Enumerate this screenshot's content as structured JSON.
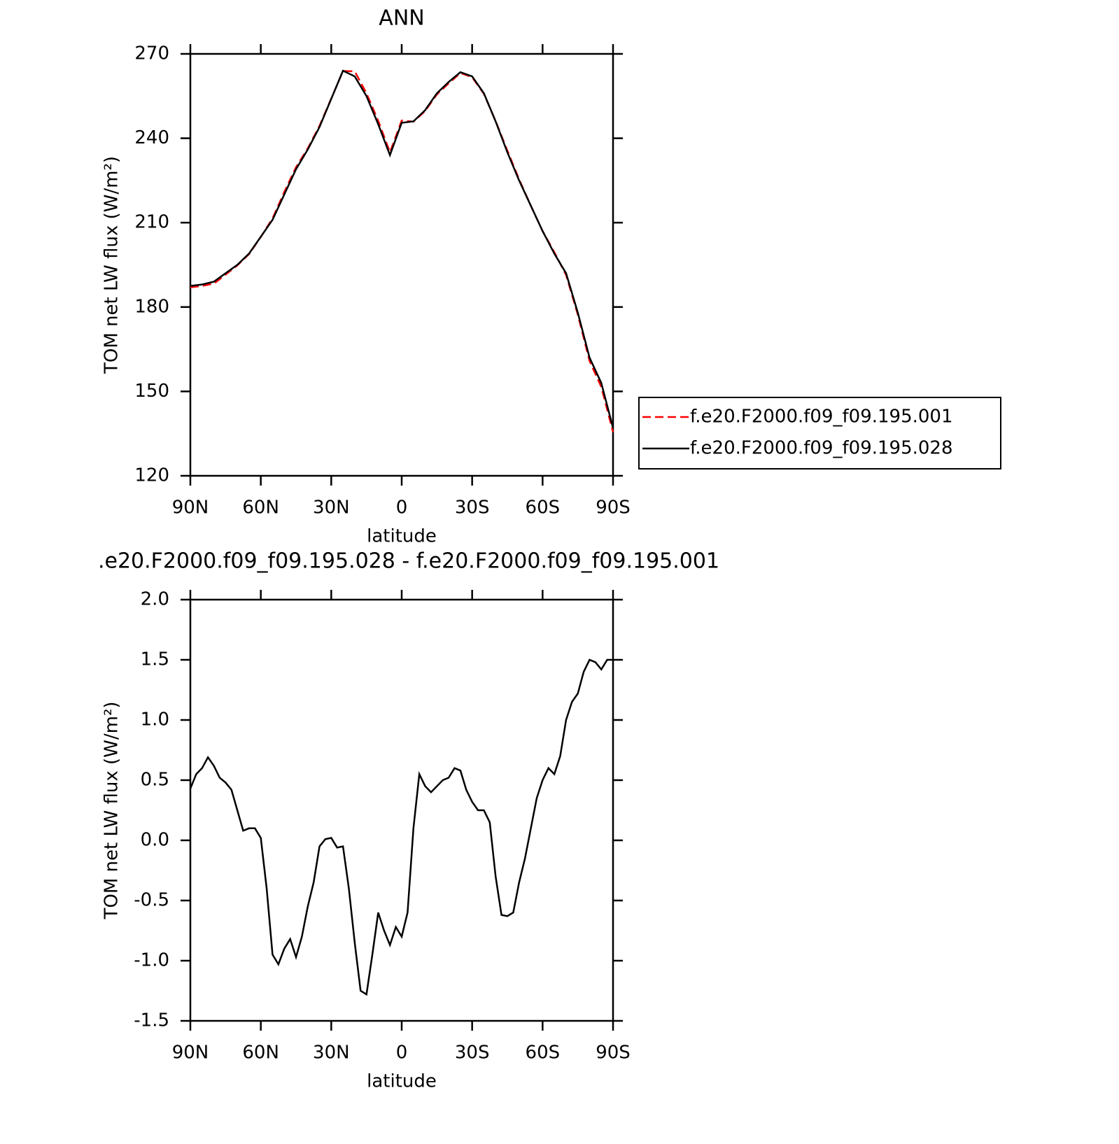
{
  "chart_data": [
    {
      "type": "line",
      "title": "ANN",
      "xlabel": "latitude",
      "ylabel": "TOM net LW flux (W/m²)",
      "x": [
        90,
        85,
        80,
        75,
        70,
        65,
        60,
        55,
        50,
        45,
        40,
        35,
        30,
        25,
        20,
        15,
        10,
        5,
        0,
        -5,
        -10,
        -15,
        -20,
        -25,
        -30,
        -35,
        -40,
        -45,
        -50,
        -55,
        -60,
        -65,
        -70,
        -75,
        -80,
        -85,
        -90
      ],
      "xlim": [
        90,
        -90
      ],
      "xticks": [
        {
          "value": 90,
          "label": "90N"
        },
        {
          "value": 60,
          "label": "60N"
        },
        {
          "value": 30,
          "label": "30N"
        },
        0,
        {
          "value": -30,
          "label": "30S"
        },
        {
          "value": -60,
          "label": "60S"
        },
        {
          "value": -90,
          "label": "90S"
        }
      ],
      "ylim": [
        120,
        270
      ],
      "yticks": [
        120,
        150,
        180,
        210,
        240,
        270
      ],
      "series": [
        {
          "name": "f.e20.F2000.f09_f09.195.001",
          "color": "#ff0000",
          "line_style": "dashed",
          "values": [
            187,
            187.5,
            188.3,
            191.5,
            194.8,
            198.8,
            204.9,
            211.5,
            220.9,
            229.7,
            236.4,
            244.4,
            254.1,
            263.9,
            263.8,
            256,
            246.2,
            235,
            246.3,
            245.9,
            249.7,
            255.6,
            259.5,
            263.2,
            261.7,
            255.8,
            246.1,
            235.6,
            225.4,
            216,
            207,
            199.5,
            191.4,
            177.3,
            160.8,
            151.6,
            135.5
          ]
        },
        {
          "name": "f.e20.F2000.f09_f09.195.028",
          "color": "#000000",
          "line_style": "solid",
          "values": [
            187.5,
            188,
            189,
            192,
            195,
            199,
            205,
            211,
            220,
            229,
            236,
            244,
            254,
            264,
            262,
            255,
            245,
            234,
            245.5,
            246,
            250,
            256,
            260,
            263.5,
            262,
            256,
            246,
            235,
            225,
            216,
            207,
            199,
            192,
            178,
            162,
            153,
            137
          ]
        }
      ],
      "legend": "right"
    },
    {
      "type": "line",
      "title": ".e20.F2000.f09_f09.195.028 - f.e20.F2000.f09_f09.195.001",
      "xlabel": "latitude",
      "ylabel": "TOM net LW flux (W/m²)",
      "x": [
        90,
        87.5,
        85,
        82.5,
        80,
        77.5,
        75,
        72.5,
        70,
        67.5,
        65,
        62.5,
        60,
        57.5,
        55,
        52.5,
        50,
        47.5,
        45,
        42.5,
        40,
        37.5,
        35,
        32.5,
        30,
        27.5,
        25,
        22.5,
        20,
        17.5,
        15,
        12.5,
        10,
        7.5,
        5,
        2.5,
        0,
        -2.5,
        -5,
        -7.5,
        -10,
        -12.5,
        -15,
        -17.5,
        -20,
        -22.5,
        -25,
        -27.5,
        -30,
        -32.5,
        -35,
        -37.5,
        -40,
        -42.5,
        -45,
        -47.5,
        -50,
        -52.5,
        -55,
        -57.5,
        -60,
        -62.5,
        -65,
        -67.5,
        -70,
        -72.5,
        -75,
        -77.5,
        -80,
        -82.5,
        -85,
        -87.5,
        -90
      ],
      "xlim": [
        90,
        -90
      ],
      "xticks": [
        {
          "value": 90,
          "label": "90N"
        },
        {
          "value": 60,
          "label": "60N"
        },
        {
          "value": 30,
          "label": "30N"
        },
        0,
        {
          "value": -30,
          "label": "30S"
        },
        {
          "value": -60,
          "label": "60S"
        },
        {
          "value": -90,
          "label": "90S"
        }
      ],
      "ylim": [
        -1.5,
        2
      ],
      "yticks": [
        -1.5,
        {
          "value": -1,
          "label": "-1.0"
        },
        -0.5,
        {
          "value": 0,
          "label": "0.0"
        },
        0.5,
        {
          "value": 1,
          "label": "1.0"
        },
        1.5,
        {
          "value": 2,
          "label": "2.0"
        }
      ],
      "series": [
        {
          "color": "#000000",
          "line_style": "solid",
          "values": [
            0.43,
            0.55,
            0.6,
            0.69,
            0.62,
            0.52,
            0.48,
            0.42,
            0.25,
            0.08,
            0.1,
            0.1,
            0.02,
            -0.4,
            -0.95,
            -1.03,
            -0.9,
            -0.82,
            -0.97,
            -0.8,
            -0.55,
            -0.35,
            -0.05,
            0.01,
            0.02,
            -0.06,
            -0.05,
            -0.4,
            -0.85,
            -1.25,
            -1.28,
            -0.95,
            -0.6,
            -0.75,
            -0.87,
            -0.72,
            -0.8,
            -0.6,
            0.1,
            0.55,
            0.45,
            0.4,
            0.45,
            0.5,
            0.52,
            0.6,
            0.58,
            0.42,
            0.32,
            0.25,
            0.25,
            0.15,
            -0.3,
            -0.62,
            -0.63,
            -0.6,
            -0.35,
            -0.15,
            0.1,
            0.35,
            0.5,
            0.6,
            0.55,
            0.7,
            1,
            1.15,
            1.22,
            1.4,
            1.5,
            1.48,
            1.42,
            1.5,
            1.5
          ]
        }
      ]
    }
  ]
}
